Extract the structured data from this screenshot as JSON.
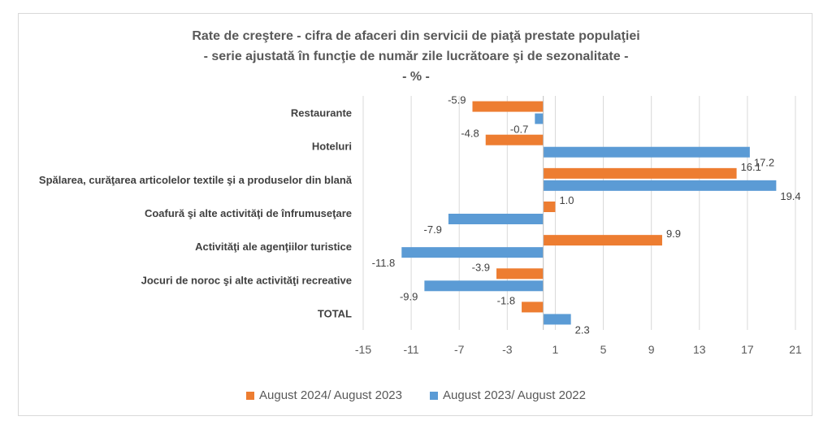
{
  "chart_data": {
    "type": "bar",
    "orientation": "horizontal",
    "title": "Rate de creştere - cifra de afaceri din servicii de piaţă prestate populaţiei",
    "subtitle": "- serie ajustată în funcţie de număr zile lucrătoare şi de sezonalitate -",
    "unit_label": "- % -",
    "categories": [
      "Restaurante",
      "Hoteluri",
      "Spălarea, curăţarea articolelor textile şi a produselor din blană",
      "Coafură şi alte activităţi de înfrumuseţare",
      "Activităţi ale agenţiilor turistice",
      "Jocuri de noroc şi alte activităţi recreative",
      "TOTAL"
    ],
    "series": [
      {
        "name": "August 2024/ August 2023",
        "color": "#ed7d31",
        "values": [
          -5.9,
          -4.8,
          16.1,
          1.0,
          9.9,
          -3.9,
          -1.8
        ],
        "labels": [
          "-5.9",
          "-4.8",
          "16.1",
          "1.0",
          "9.9",
          "-3.9",
          "-1.8"
        ]
      },
      {
        "name": "August 2023/ August 2022",
        "color": "#5b9bd5",
        "values": [
          -0.7,
          17.2,
          19.4,
          -7.9,
          -11.8,
          -9.9,
          2.3
        ],
        "labels": [
          "-0.7",
          "17.2",
          "19.4",
          "-7.9",
          "-11.8",
          "-9.9",
          "2.3"
        ]
      }
    ],
    "x_ticks": [
      "-15",
      "-11",
      "-7",
      "-3",
      "1",
      "5",
      "9",
      "13",
      "17",
      "21"
    ],
    "xlim": [
      -15,
      21
    ],
    "grid": "vertical",
    "legend_position": "bottom"
  }
}
